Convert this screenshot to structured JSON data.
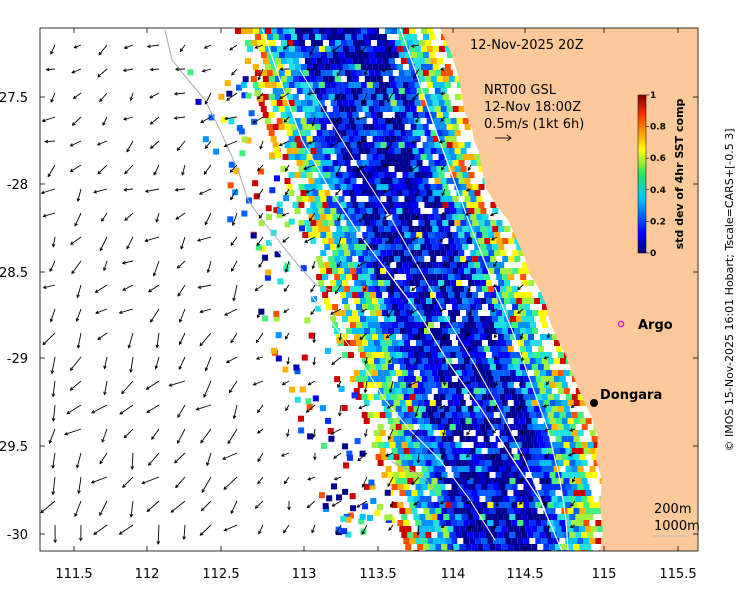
{
  "map": {
    "timestamp": "12-Nov-2025 20Z",
    "current_source": "NRT00 GSL",
    "current_time": "12-Nov 18:00Z",
    "current_scale": "0.5m/s (1kt 6h)",
    "x_ticks": [
      "111.5",
      "112",
      "112.5",
      "113",
      "113.5",
      "114",
      "114.5",
      "115",
      "115.5"
    ],
    "y_ticks": [
      "-27.5",
      "-28",
      "-28.5",
      "-29",
      "-29.5",
      "-30"
    ],
    "places": [
      {
        "name": "Argo",
        "lon": 115.05,
        "lat": -28.83,
        "marker": "circle",
        "color": "#e020e0"
      },
      {
        "name": "Dongara",
        "lon": 114.92,
        "lat": -29.25,
        "marker": "dot",
        "color": "#000000"
      }
    ],
    "contours": [
      "200m",
      "1000m"
    ],
    "land_color": "#fcc99b",
    "colorbar": {
      "title": "std dev of 4hr SST comp",
      "ticks": [
        "0",
        "0.2",
        "0.4",
        "0.6",
        "0.8",
        "1"
      ],
      "colormap": "jet"
    },
    "credit": "© IMOS 15-Nov-2025 16:01 Hobart; Tscale=CARS+[-0.5 3]"
  }
}
